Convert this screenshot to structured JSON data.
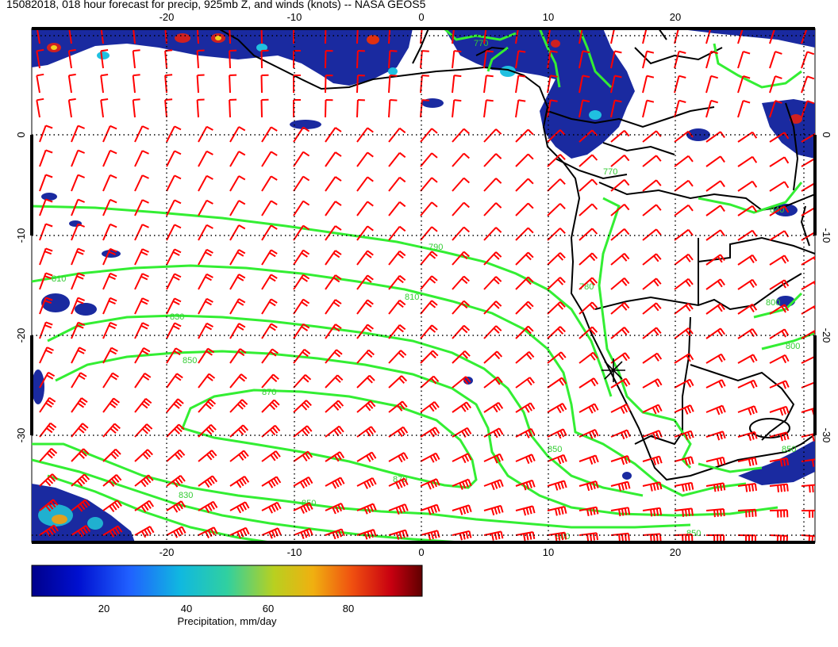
{
  "title": "15082018, 018 hour forecast for precip, 925mb Z, and winds (knots) -- NASA GEOS5",
  "map": {
    "lon_range": [
      -31,
      31
    ],
    "lat_range": [
      -40,
      10
    ],
    "lon_ticks": [
      "-20",
      "-10",
      "0",
      "10",
      "20"
    ],
    "lat_ticks": [
      "0",
      "-10",
      "-20",
      "-30"
    ],
    "colors": {
      "wind_barbs": "#ff0000",
      "contours": "#33ee33",
      "coastline": "#000000",
      "precip_base": "#1a2aa0"
    },
    "contour_labels": [
      "770",
      "770",
      "790",
      "810",
      "810",
      "830",
      "850",
      "870",
      "870",
      "850",
      "830",
      "850",
      "840",
      "780",
      "800",
      "850",
      "800",
      "850",
      "800"
    ],
    "marker": "asterisk-marker"
  },
  "colorbar": {
    "ticks": [
      "20",
      "40",
      "60",
      "80"
    ],
    "range": [
      0,
      100
    ],
    "label": "Precipitation, mm/day"
  }
}
